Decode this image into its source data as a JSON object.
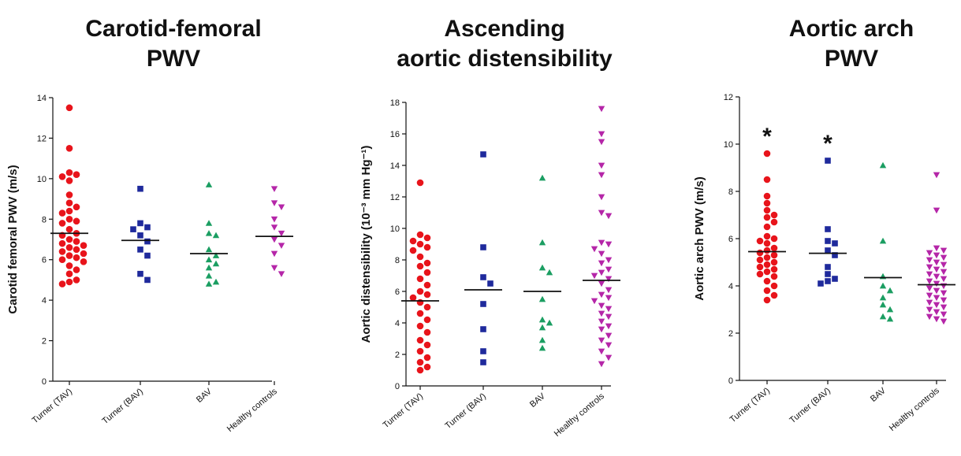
{
  "chart_data": [
    {
      "type": "scatter",
      "title_lines": [
        "Carotid-femoral",
        "PWV"
      ],
      "ylabel": "Carotid femoral PWV (m/s)",
      "ylim": [
        0,
        14
      ],
      "yticks": [
        0,
        2,
        4,
        6,
        8,
        10,
        12,
        14
      ],
      "categories": [
        "Turner (TAV)",
        "Turner (BAV)",
        "BAV",
        "Healthy controls"
      ],
      "series": [
        {
          "marker": "circle",
          "color": "#e8141b",
          "mean": 7.3,
          "values": [
            13.5,
            11.5,
            10.3,
            10.2,
            10.1,
            9.9,
            9.2,
            8.8,
            8.6,
            8.4,
            8.3,
            8.0,
            7.9,
            7.8,
            7.5,
            7.3,
            7.2,
            7.0,
            6.9,
            6.8,
            6.7,
            6.6,
            6.5,
            6.4,
            6.3,
            6.2,
            6.1,
            6.0,
            5.9,
            5.7,
            5.5,
            5.3,
            5.0,
            4.9,
            4.8
          ]
        },
        {
          "marker": "square",
          "color": "#1f2a9c",
          "mean": 6.95,
          "values": [
            9.5,
            7.8,
            7.6,
            7.5,
            7.2,
            6.9,
            6.5,
            6.2,
            5.3,
            5.0
          ]
        },
        {
          "marker": "triangle-up",
          "color": "#1b9e62",
          "mean": 6.3,
          "values": [
            9.7,
            7.8,
            7.3,
            7.2,
            6.5,
            6.2,
            6.0,
            5.8,
            5.6,
            5.2,
            4.9,
            4.8
          ]
        },
        {
          "marker": "triangle-down",
          "color": "#b526a8",
          "mean": 7.15,
          "values": [
            9.5,
            8.8,
            8.6,
            8.0,
            7.6,
            7.3,
            7.0,
            6.7,
            6.3,
            5.6,
            5.3
          ]
        }
      ],
      "significance": []
    },
    {
      "type": "scatter",
      "title_lines": [
        "Ascending",
        "aortic distensibility"
      ],
      "ylabel": "Aortic distensibility (10⁻³ mm Hg⁻¹)",
      "ylim": [
        0,
        18
      ],
      "yticks": [
        0,
        2,
        4,
        6,
        8,
        10,
        12,
        14,
        16,
        18
      ],
      "categories": [
        "Turner (TAV)",
        "Turner (BAV)",
        "BAV",
        "Healthy controls"
      ],
      "series": [
        {
          "marker": "circle",
          "color": "#e8141b",
          "mean": 5.4,
          "values": [
            12.9,
            9.6,
            9.4,
            9.2,
            9.0,
            8.8,
            8.6,
            8.2,
            7.8,
            7.6,
            7.2,
            6.8,
            6.4,
            6.0,
            5.8,
            5.6,
            5.3,
            5.0,
            4.6,
            4.2,
            3.8,
            3.4,
            2.9,
            2.6,
            2.2,
            1.8,
            1.5,
            1.2,
            1.0
          ]
        },
        {
          "marker": "square",
          "color": "#1f2a9c",
          "mean": 6.1,
          "values": [
            14.7,
            8.8,
            6.9,
            6.5,
            5.2,
            3.6,
            2.2,
            1.5
          ]
        },
        {
          "marker": "triangle-up",
          "color": "#1b9e62",
          "mean": 6.0,
          "values": [
            13.2,
            9.1,
            7.5,
            7.2,
            5.5,
            4.2,
            4.0,
            3.7,
            2.9,
            2.4
          ]
        },
        {
          "marker": "triangle-down",
          "color": "#b526a8",
          "mean": 6.7,
          "values": [
            17.6,
            16.0,
            15.5,
            14.0,
            13.4,
            12.0,
            11.0,
            10.8,
            9.1,
            9.0,
            8.7,
            8.4,
            8.0,
            7.8,
            7.4,
            7.2,
            7.0,
            6.8,
            6.5,
            6.1,
            5.8,
            5.6,
            5.4,
            5.1,
            4.9,
            4.6,
            4.4,
            4.1,
            3.8,
            3.6,
            3.2,
            2.9,
            2.6,
            2.2,
            1.8,
            1.4
          ]
        }
      ],
      "significance": []
    },
    {
      "type": "scatter",
      "title_lines": [
        "Aortic arch",
        "PWV"
      ],
      "ylabel": "Aortic arch PWV (m/s)",
      "ylim": [
        0,
        12
      ],
      "yticks": [
        0,
        2,
        4,
        6,
        8,
        10,
        12
      ],
      "categories": [
        "Turner (TAV)",
        "Turner (BAV)",
        "BAV",
        "Healthy controls"
      ],
      "series": [
        {
          "marker": "circle",
          "color": "#e8141b",
          "mean": 5.45,
          "values": [
            9.6,
            8.5,
            7.8,
            7.5,
            7.2,
            7.0,
            6.9,
            6.7,
            6.5,
            6.1,
            6.0,
            5.9,
            5.8,
            5.6,
            5.5,
            5.4,
            5.3,
            5.2,
            5.1,
            5.0,
            4.9,
            4.8,
            4.7,
            4.6,
            4.5,
            4.4,
            4.2,
            4.0,
            3.8,
            3.6,
            3.4
          ]
        },
        {
          "marker": "square",
          "color": "#1f2a9c",
          "mean": 5.38,
          "values": [
            9.3,
            6.4,
            5.9,
            5.8,
            5.5,
            5.3,
            4.8,
            4.5,
            4.3,
            4.2,
            4.1
          ]
        },
        {
          "marker": "triangle-up",
          "color": "#1b9e62",
          "mean": 4.35,
          "values": [
            9.1,
            5.9,
            4.4,
            4.0,
            3.8,
            3.5,
            3.2,
            3.0,
            2.7,
            2.6
          ]
        },
        {
          "marker": "triangle-down",
          "color": "#b526a8",
          "mean": 4.05,
          "values": [
            8.7,
            7.2,
            5.6,
            5.5,
            5.4,
            5.3,
            5.2,
            5.1,
            5.0,
            4.9,
            4.8,
            4.7,
            4.6,
            4.5,
            4.4,
            4.3,
            4.2,
            4.1,
            4.0,
            3.9,
            3.8,
            3.7,
            3.6,
            3.5,
            3.4,
            3.3,
            3.2,
            3.1,
            3.0,
            2.9,
            2.8,
            2.7,
            2.6,
            2.5
          ]
        }
      ],
      "significance": [
        {
          "category": "Turner (TAV)",
          "label": "*"
        },
        {
          "category": "Turner (BAV)",
          "label": "*"
        }
      ]
    }
  ]
}
